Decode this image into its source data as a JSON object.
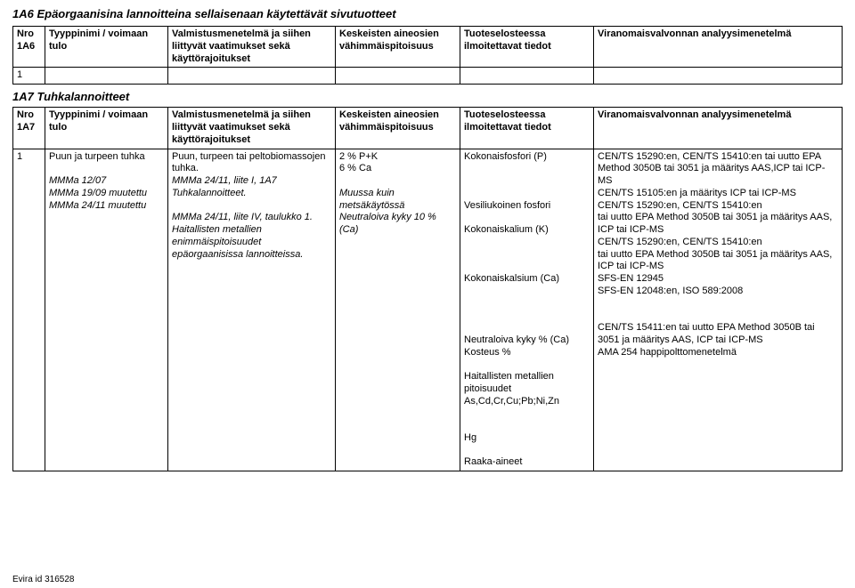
{
  "section_1a6": {
    "title": "1A6 Epäorgaanisina lannoitteina sellaisenaan käytettävät sivutuotteet",
    "columns": {
      "nro": "Nro 1A6",
      "tyyppi": "Tyyppinimi / voimaan tulo",
      "valm": "Valmistusmenetelmä ja siihen liittyvät vaatimukset sekä käyttörajoitukset",
      "kesk": "Keskeisten aineosien vähimmäispitoisuus",
      "tuot": "Tuoteselosteessa ilmoitettavat tiedot",
      "vir": "Viranomaisvalvonnan analyysimenetelmä"
    },
    "row1_nro": "1"
  },
  "section_1a7": {
    "title": "1A7 Tuhkalannoitteet",
    "columns": {
      "nro": "Nro 1A7",
      "tyyppi": "Tyyppinimi / voimaan tulo",
      "valm": "Valmistusmenetelmä ja siihen liittyvät vaatimukset sekä käyttörajoitukset",
      "kesk": "Keskeisten aineosien vähimmäispitoisuus",
      "tuot": "Tuoteselosteessa ilmoitettavat tiedot",
      "vir": "Viranomaisvalvonnan analyysimenetelmä"
    },
    "row1": {
      "nro": "1",
      "tyyppi_lines": [
        "Puun ja turpeen tuhka",
        "",
        "MMMa 12/07",
        "MMMa 19/09 muutettu",
        "MMMa 24/11 muutettu"
      ],
      "valm_lines": [
        "Puun, turpeen tai peltobiomassojen tuhka.",
        "MMMa 24/11, liite I, 1A7 Tuhkalannoitteet.",
        "",
        "MMMa 24/11, liite IV, taulukko 1. Haitallisten metallien enimmäispitoisuudet epäorgaanisissa lannoitteissa."
      ],
      "kesk_lines": [
        "2 % P+K",
        "6 % Ca",
        "",
        "Muussa kuin metsäkäytössä Neutraloiva kyky 10 % (Ca)"
      ],
      "tuot_lines": [
        "Kokonaisfosfori (P)",
        "",
        "",
        "",
        "Vesiliukoinen fosfori",
        "",
        "Kokonaiskalium (K)",
        "",
        "",
        "",
        "Kokonaiskalsium (Ca)",
        "",
        "",
        "",
        "",
        "Neutraloiva kyky % (Ca)",
        "Kosteus %",
        "",
        "Haitallisten metallien pitoisuudet",
        "As,Cd,Cr,Cu;Pb;Ni,Zn",
        "",
        "",
        "Hg",
        "",
        "Raaka-aineet"
      ],
      "vir_lines": [
        "CEN/TS 15290:en, CEN/TS 15410:en tai uutto EPA Method 3050B tai 3051 ja määritys AAS,ICP tai ICP-MS",
        "CEN/TS 15105:en ja määritys ICP tai ICP-MS",
        "CEN/TS 15290:en, CEN/TS 15410:en",
        "tai uutto EPA Method 3050B tai 3051 ja määritys AAS, ICP tai ICP-MS",
        "CEN/TS 15290:en, CEN/TS 15410:en",
        "tai uutto EPA Method 3050B tai 3051 ja määritys AAS, ICP tai ICP-MS",
        "SFS-EN 12945",
        "SFS-EN 12048:en, ISO 589:2008",
        "",
        "",
        "CEN/TS 15411:en tai uutto EPA Method 3050B tai 3051 ja määritys AAS, ICP tai ICP-MS",
        "AMA 254 happipolttomenetelmä"
      ]
    }
  },
  "footer": "Evira id 316528"
}
